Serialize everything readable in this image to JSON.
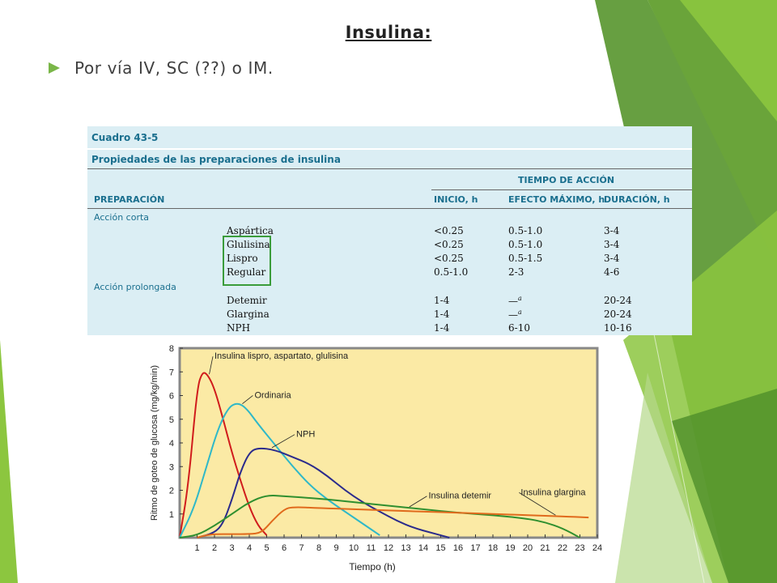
{
  "slide": {
    "title": "Insulina:",
    "bullet": "Por vía IV, SC (??) o IM."
  },
  "table": {
    "number": "Cuadro 43-5",
    "caption": "Propiedades de las preparaciones de insulina",
    "group_header": "TIEMPO DE ACCIÓN",
    "columns": [
      "PREPARACIÓN",
      "INICIO, h",
      "EFECTO MÁXIMO, h",
      "DURACIÓN, h"
    ],
    "sections": [
      {
        "label": "Acción corta",
        "rows": [
          {
            "name": "Aspártica",
            "inicio": "<0.25",
            "maximo": "0.5-1.0",
            "duracion": "3-4"
          },
          {
            "name": "Glulisina",
            "inicio": "<0.25",
            "maximo": "0.5-1.0",
            "duracion": "3-4"
          },
          {
            "name": "Lispro",
            "inicio": "<0.25",
            "maximo": "0.5-1.5",
            "duracion": "3-4"
          },
          {
            "name": "Regular",
            "inicio": "0.5-1.0",
            "maximo": "2-3",
            "duracion": "4-6"
          }
        ]
      },
      {
        "label": "Acción prolongada",
        "rows": [
          {
            "name": "Detemir",
            "inicio": "1-4",
            "maximo": "—",
            "maximo_sup": "a",
            "duracion": "20-24"
          },
          {
            "name": "Glargina",
            "inicio": "1-4",
            "maximo": "—",
            "maximo_sup": "a",
            "duracion": "20-24"
          },
          {
            "name": "NPH",
            "inicio": "1-4",
            "maximo": "6-10",
            "duracion": "10-16"
          }
        ]
      }
    ],
    "highlight_color": "#3a9c3a"
  },
  "chart_data": {
    "type": "line",
    "xlabel": "Tiempo (h)",
    "ylabel": "Ritmo de goteo de glucosa (mg/kg/min)",
    "xlim": [
      0,
      24
    ],
    "ylim": [
      0,
      8
    ],
    "xticks": [
      "1",
      "2",
      "3",
      "4",
      "5",
      "6",
      "7",
      "8",
      "9",
      "10",
      "11",
      "12",
      "13",
      "14",
      "15",
      "16",
      "17",
      "18",
      "19",
      "20",
      "21",
      "22",
      "23",
      "24"
    ],
    "yticks": [
      "1",
      "2",
      "3",
      "4",
      "5",
      "6",
      "7",
      "8"
    ],
    "background": "#fbeaa5",
    "grid": false,
    "series": [
      {
        "name": "Insulina lispro, aspartato, glulisina",
        "color": "#d01c1c",
        "points": [
          [
            0,
            0
          ],
          [
            0.5,
            2.2
          ],
          [
            1,
            6.3
          ],
          [
            1.3,
            7.0
          ],
          [
            1.6,
            6.9
          ],
          [
            2,
            6.3
          ],
          [
            2.5,
            5.0
          ],
          [
            3,
            3.6
          ],
          [
            3.5,
            2.4
          ],
          [
            4,
            1.3
          ],
          [
            4.5,
            0.5
          ],
          [
            5,
            0.1
          ]
        ]
      },
      {
        "name": "Ordinaria",
        "color": "#2fb8c8",
        "points": [
          [
            0,
            0
          ],
          [
            0.8,
            1.2
          ],
          [
            1.5,
            2.9
          ],
          [
            2.2,
            4.6
          ],
          [
            2.8,
            5.5
          ],
          [
            3.3,
            5.7
          ],
          [
            3.8,
            5.5
          ],
          [
            4.5,
            4.8
          ],
          [
            5.5,
            3.9
          ],
          [
            6.5,
            3.0
          ],
          [
            7.5,
            2.2
          ],
          [
            8.5,
            1.6
          ],
          [
            9.5,
            1.1
          ],
          [
            10.5,
            0.6
          ],
          [
            11.5,
            0.1
          ]
        ]
      },
      {
        "name": "NPH",
        "color": "#2b2b8c",
        "points": [
          [
            1,
            0
          ],
          [
            2,
            0.2
          ],
          [
            2.5,
            0.6
          ],
          [
            3,
            1.6
          ],
          [
            3.5,
            2.8
          ],
          [
            4,
            3.6
          ],
          [
            4.5,
            3.8
          ],
          [
            5.5,
            3.7
          ],
          [
            6.5,
            3.4
          ],
          [
            7.5,
            3.1
          ],
          [
            8.5,
            2.6
          ],
          [
            9.5,
            2.0
          ],
          [
            10.5,
            1.5
          ],
          [
            11.5,
            1.1
          ],
          [
            12.5,
            0.7
          ],
          [
            13.5,
            0.4
          ],
          [
            14.5,
            0.2
          ],
          [
            15.5,
            0
          ]
        ]
      },
      {
        "name": "Insulina detemir",
        "color": "#2f8f2f",
        "points": [
          [
            0,
            0
          ],
          [
            1,
            0.1
          ],
          [
            2,
            0.5
          ],
          [
            3,
            1.0
          ],
          [
            4,
            1.5
          ],
          [
            5,
            1.8
          ],
          [
            6,
            1.75
          ],
          [
            8,
            1.65
          ],
          [
            10,
            1.5
          ],
          [
            12,
            1.35
          ],
          [
            14,
            1.2
          ],
          [
            16,
            1.05
          ],
          [
            18,
            0.95
          ],
          [
            20,
            0.8
          ],
          [
            21,
            0.65
          ],
          [
            22,
            0.4
          ],
          [
            23,
            0
          ]
        ]
      },
      {
        "name": "Insulina glargina",
        "color": "#e06a1c",
        "points": [
          [
            1,
            0
          ],
          [
            1.5,
            0.1
          ],
          [
            2,
            0.15
          ],
          [
            3,
            0.15
          ],
          [
            4,
            0.15
          ],
          [
            4.7,
            0.2
          ],
          [
            5.3,
            0.7
          ],
          [
            6,
            1.2
          ],
          [
            6.5,
            1.3
          ],
          [
            8,
            1.25
          ],
          [
            10,
            1.2
          ],
          [
            12,
            1.15
          ],
          [
            14,
            1.1
          ],
          [
            16,
            1.05
          ],
          [
            18,
            1.0
          ],
          [
            20,
            0.95
          ],
          [
            22,
            0.9
          ],
          [
            23.5,
            0.85
          ]
        ]
      }
    ]
  }
}
